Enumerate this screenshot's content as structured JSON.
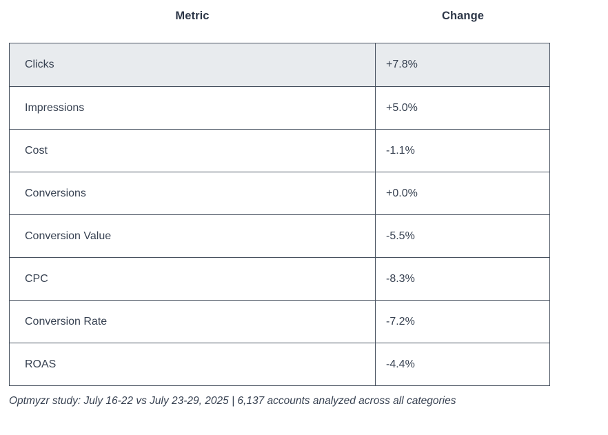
{
  "table": {
    "headers": [
      {
        "label": "Metric"
      },
      {
        "label": "Change"
      }
    ],
    "rows": [
      {
        "metric": "Clicks",
        "change": "+7.8%",
        "highlighted": true
      },
      {
        "metric": "Impressions",
        "change": "+5.0%",
        "highlighted": false
      },
      {
        "metric": "Cost",
        "change": "-1.1%",
        "highlighted": false
      },
      {
        "metric": "Conversions",
        "change": "+0.0%",
        "highlighted": false
      },
      {
        "metric": "Conversion Value",
        "change": "-5.5%",
        "highlighted": false
      },
      {
        "metric": "CPC",
        "change": "-8.3%",
        "highlighted": false
      },
      {
        "metric": "Conversion Rate",
        "change": "-7.2%",
        "highlighted": false
      },
      {
        "metric": "ROAS",
        "change": "-4.4%",
        "highlighted": false
      }
    ],
    "colors": {
      "border": "#47515f",
      "row_highlight_bg": "#e8ebee",
      "header_text": "#2d3748",
      "cell_text": "#374151"
    }
  },
  "footnote": {
    "text": "Optmyzr study: July 16-22 vs July 23-29, 2025 | 6,137 accounts analyzed across all categories"
  },
  "chart_data": {
    "type": "table",
    "title": "",
    "columns": [
      "Metric",
      "Change"
    ],
    "rows": [
      [
        "Clicks",
        "+7.8%"
      ],
      [
        "Impressions",
        "+5.0%"
      ],
      [
        "Cost",
        "-1.1%"
      ],
      [
        "Conversions",
        "+0.0%"
      ],
      [
        "Conversion Value",
        "-5.5%"
      ],
      [
        "CPC",
        "-8.3%"
      ],
      [
        "Conversion Rate",
        "-7.2%"
      ],
      [
        "ROAS",
        "-4.4%"
      ]
    ],
    "values_pct": {
      "Clicks": 7.8,
      "Impressions": 5.0,
      "Cost": -1.1,
      "Conversions": 0.0,
      "Conversion Value": -5.5,
      "CPC": -8.3,
      "Conversion Rate": -7.2,
      "ROAS": -4.4
    },
    "caption": "Optmyzr study: July 16-22 vs July 23-29, 2025 | 6,137 accounts analyzed across all categories"
  }
}
